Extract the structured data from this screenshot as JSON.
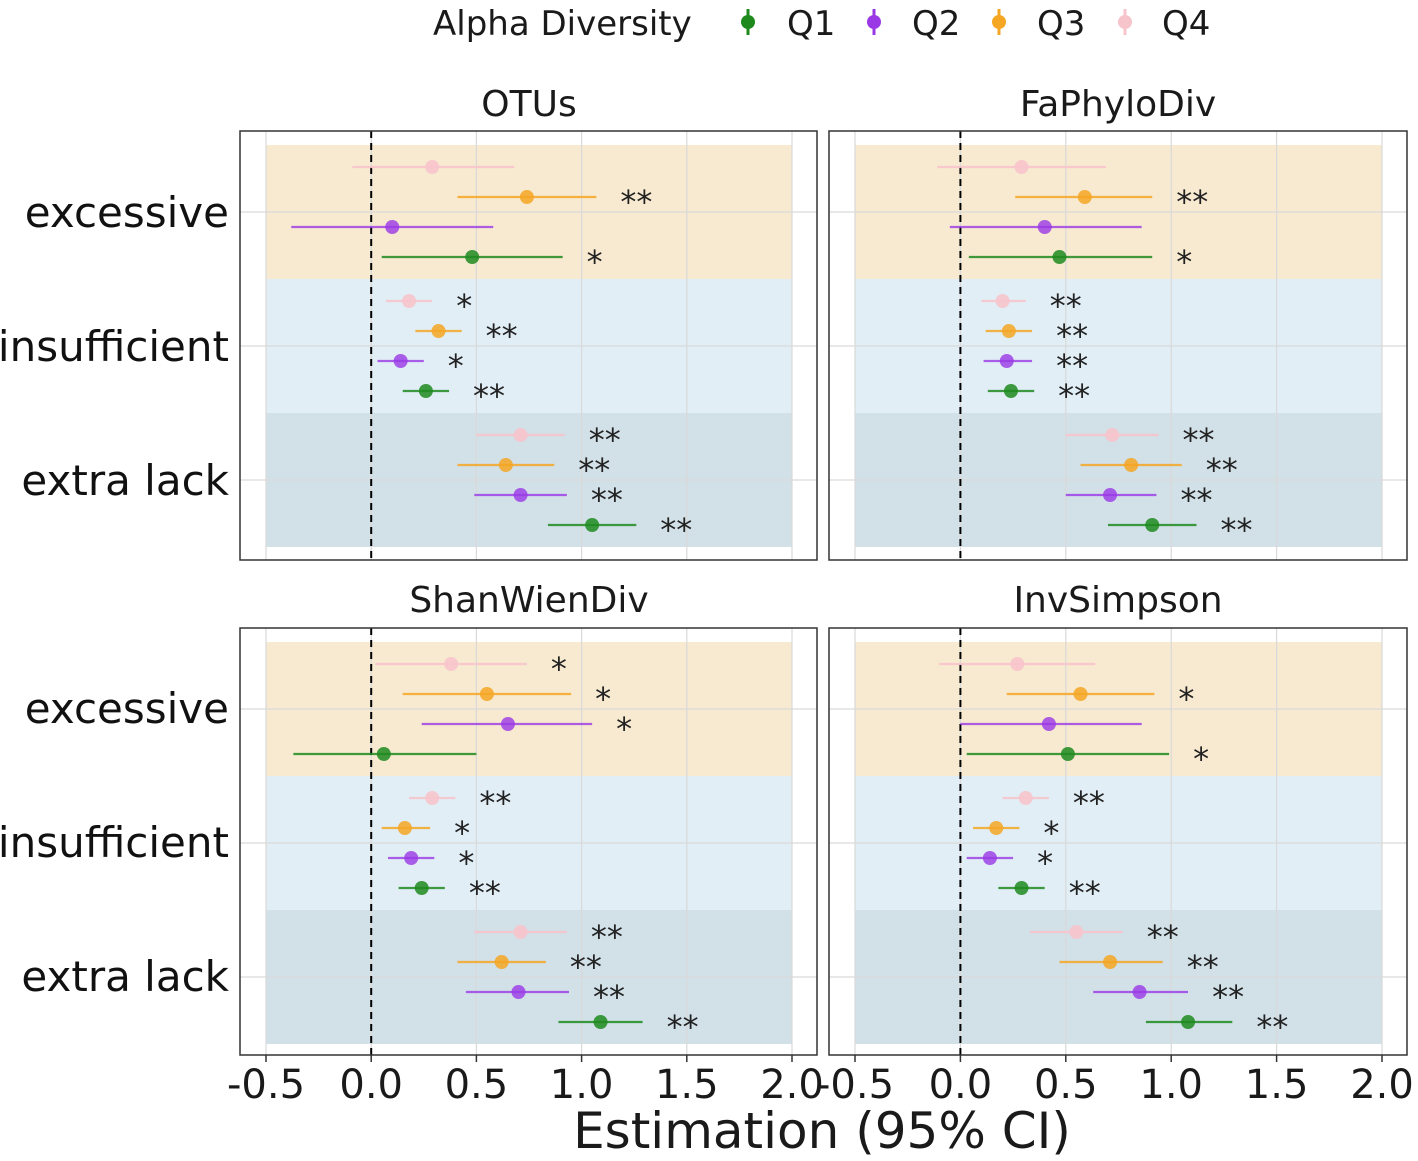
{
  "chart_data": {
    "type": "forest",
    "legend_title": "Alpha Diversity",
    "xlabel": "Estimation (95% CI)",
    "xlim": [
      -0.5,
      2.0
    ],
    "x_ticks": [
      -0.5,
      0.0,
      0.5,
      1.0,
      1.5,
      2.0
    ],
    "x_tick_labels": [
      "-0.5",
      "0.0",
      "0.5",
      "1.0",
      "1.5",
      "2.0"
    ],
    "reference_line": 0,
    "groups": [
      "excessive",
      "insufficient",
      "extra lack"
    ],
    "group_colors": {
      "excessive": "#f7ead0",
      "insufficient": "#e1eef6",
      "extra lack": "#d2e0e8"
    },
    "series": [
      {
        "name": "Q1",
        "color": "#1e8a1e"
      },
      {
        "name": "Q2",
        "color": "#9a38e6"
      },
      {
        "name": "Q3",
        "color": "#f5a623"
      },
      {
        "name": "Q4",
        "color": "#f7c4cc"
      }
    ],
    "panels": [
      {
        "title": "OTUs",
        "rows": [
          {
            "group": "excessive",
            "series": "Q4",
            "est": 0.29,
            "lo": -0.09,
            "hi": 0.68,
            "sig": ""
          },
          {
            "group": "excessive",
            "series": "Q3",
            "est": 0.74,
            "lo": 0.41,
            "hi": 1.07,
            "sig": "**"
          },
          {
            "group": "excessive",
            "series": "Q2",
            "est": 0.1,
            "lo": -0.38,
            "hi": 0.58,
            "sig": ""
          },
          {
            "group": "excessive",
            "series": "Q1",
            "est": 0.48,
            "lo": 0.05,
            "hi": 0.91,
            "sig": "*"
          },
          {
            "group": "insufficient",
            "series": "Q4",
            "est": 0.18,
            "lo": 0.07,
            "hi": 0.29,
            "sig": "*"
          },
          {
            "group": "insufficient",
            "series": "Q3",
            "est": 0.32,
            "lo": 0.21,
            "hi": 0.43,
            "sig": "**"
          },
          {
            "group": "insufficient",
            "series": "Q2",
            "est": 0.14,
            "lo": 0.03,
            "hi": 0.25,
            "sig": "*"
          },
          {
            "group": "insufficient",
            "series": "Q1",
            "est": 0.26,
            "lo": 0.15,
            "hi": 0.37,
            "sig": "**"
          },
          {
            "group": "extra lack",
            "series": "Q4",
            "est": 0.71,
            "lo": 0.5,
            "hi": 0.92,
            "sig": "**"
          },
          {
            "group": "extra lack",
            "series": "Q3",
            "est": 0.64,
            "lo": 0.41,
            "hi": 0.87,
            "sig": "**"
          },
          {
            "group": "extra lack",
            "series": "Q2",
            "est": 0.71,
            "lo": 0.49,
            "hi": 0.93,
            "sig": "**"
          },
          {
            "group": "extra lack",
            "series": "Q1",
            "est": 1.05,
            "lo": 0.84,
            "hi": 1.26,
            "sig": "**"
          }
        ]
      },
      {
        "title": "FaPhyloDiv",
        "rows": [
          {
            "group": "excessive",
            "series": "Q4",
            "est": 0.29,
            "lo": -0.11,
            "hi": 0.69,
            "sig": ""
          },
          {
            "group": "excessive",
            "series": "Q3",
            "est": 0.59,
            "lo": 0.26,
            "hi": 0.91,
            "sig": "**"
          },
          {
            "group": "excessive",
            "series": "Q2",
            "est": 0.4,
            "lo": -0.05,
            "hi": 0.86,
            "sig": ""
          },
          {
            "group": "excessive",
            "series": "Q1",
            "est": 0.47,
            "lo": 0.04,
            "hi": 0.91,
            "sig": "*"
          },
          {
            "group": "insufficient",
            "series": "Q4",
            "est": 0.2,
            "lo": 0.1,
            "hi": 0.31,
            "sig": "**"
          },
          {
            "group": "insufficient",
            "series": "Q3",
            "est": 0.23,
            "lo": 0.12,
            "hi": 0.34,
            "sig": "**"
          },
          {
            "group": "insufficient",
            "series": "Q2",
            "est": 0.22,
            "lo": 0.11,
            "hi": 0.34,
            "sig": "**"
          },
          {
            "group": "insufficient",
            "series": "Q1",
            "est": 0.24,
            "lo": 0.13,
            "hi": 0.35,
            "sig": "**"
          },
          {
            "group": "extra lack",
            "series": "Q4",
            "est": 0.72,
            "lo": 0.5,
            "hi": 0.94,
            "sig": "**"
          },
          {
            "group": "extra lack",
            "series": "Q3",
            "est": 0.81,
            "lo": 0.57,
            "hi": 1.05,
            "sig": "**"
          },
          {
            "group": "extra lack",
            "series": "Q2",
            "est": 0.71,
            "lo": 0.5,
            "hi": 0.93,
            "sig": "**"
          },
          {
            "group": "extra lack",
            "series": "Q1",
            "est": 0.91,
            "lo": 0.7,
            "hi": 1.12,
            "sig": "**"
          }
        ]
      },
      {
        "title": "ShanWienDiv",
        "rows": [
          {
            "group": "excessive",
            "series": "Q4",
            "est": 0.38,
            "lo": 0.02,
            "hi": 0.74,
            "sig": "*"
          },
          {
            "group": "excessive",
            "series": "Q3",
            "est": 0.55,
            "lo": 0.15,
            "hi": 0.95,
            "sig": "*"
          },
          {
            "group": "excessive",
            "series": "Q2",
            "est": 0.65,
            "lo": 0.24,
            "hi": 1.05,
            "sig": "*"
          },
          {
            "group": "excessive",
            "series": "Q1",
            "est": 0.06,
            "lo": -0.37,
            "hi": 0.5,
            "sig": ""
          },
          {
            "group": "insufficient",
            "series": "Q4",
            "est": 0.29,
            "lo": 0.18,
            "hi": 0.4,
            "sig": "**"
          },
          {
            "group": "insufficient",
            "series": "Q3",
            "est": 0.16,
            "lo": 0.05,
            "hi": 0.28,
            "sig": "*"
          },
          {
            "group": "insufficient",
            "series": "Q2",
            "est": 0.19,
            "lo": 0.08,
            "hi": 0.3,
            "sig": "*"
          },
          {
            "group": "insufficient",
            "series": "Q1",
            "est": 0.24,
            "lo": 0.13,
            "hi": 0.35,
            "sig": "**"
          },
          {
            "group": "extra lack",
            "series": "Q4",
            "est": 0.71,
            "lo": 0.49,
            "hi": 0.93,
            "sig": "**"
          },
          {
            "group": "extra lack",
            "series": "Q3",
            "est": 0.62,
            "lo": 0.41,
            "hi": 0.83,
            "sig": "**"
          },
          {
            "group": "extra lack",
            "series": "Q2",
            "est": 0.7,
            "lo": 0.45,
            "hi": 0.94,
            "sig": "**"
          },
          {
            "group": "extra lack",
            "series": "Q1",
            "est": 1.09,
            "lo": 0.89,
            "hi": 1.29,
            "sig": "**"
          }
        ]
      },
      {
        "title": "InvSimpson",
        "rows": [
          {
            "group": "excessive",
            "series": "Q4",
            "est": 0.27,
            "lo": -0.1,
            "hi": 0.64,
            "sig": ""
          },
          {
            "group": "excessive",
            "series": "Q3",
            "est": 0.57,
            "lo": 0.22,
            "hi": 0.92,
            "sig": "*"
          },
          {
            "group": "excessive",
            "series": "Q2",
            "est": 0.42,
            "lo": 0.0,
            "hi": 0.86,
            "sig": ""
          },
          {
            "group": "excessive",
            "series": "Q1",
            "est": 0.51,
            "lo": 0.03,
            "hi": 0.99,
            "sig": "*"
          },
          {
            "group": "insufficient",
            "series": "Q4",
            "est": 0.31,
            "lo": 0.2,
            "hi": 0.42,
            "sig": "**"
          },
          {
            "group": "insufficient",
            "series": "Q3",
            "est": 0.17,
            "lo": 0.06,
            "hi": 0.28,
            "sig": "*"
          },
          {
            "group": "insufficient",
            "series": "Q2",
            "est": 0.14,
            "lo": 0.03,
            "hi": 0.25,
            "sig": "*"
          },
          {
            "group": "insufficient",
            "series": "Q1",
            "est": 0.29,
            "lo": 0.18,
            "hi": 0.4,
            "sig": "**"
          },
          {
            "group": "extra lack",
            "series": "Q4",
            "est": 0.55,
            "lo": 0.33,
            "hi": 0.77,
            "sig": "**"
          },
          {
            "group": "extra lack",
            "series": "Q3",
            "est": 0.71,
            "lo": 0.47,
            "hi": 0.96,
            "sig": "**"
          },
          {
            "group": "extra lack",
            "series": "Q2",
            "est": 0.85,
            "lo": 0.63,
            "hi": 1.08,
            "sig": "**"
          },
          {
            "group": "extra lack",
            "series": "Q1",
            "est": 1.08,
            "lo": 0.88,
            "hi": 1.29,
            "sig": "**"
          }
        ]
      }
    ]
  }
}
